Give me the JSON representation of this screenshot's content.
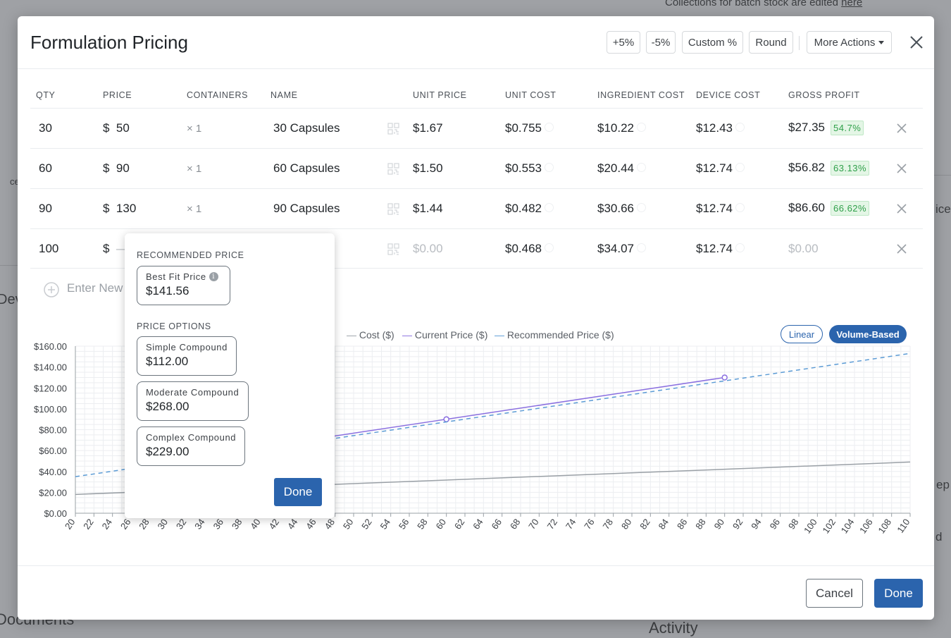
{
  "background": {
    "top_text": "Collections for batch stock are edited",
    "top_link": "here",
    "documents_heading": "Documents",
    "activity_heading": "Activity",
    "fragment_dev": "Dev",
    "fragment_ice": "ice",
    "fragment_ep": "ep",
    "fragment_d": "d",
    "fragment_ce": "ce"
  },
  "modal": {
    "title": "Formulation Pricing",
    "actions": [
      "+5%",
      "-5%",
      "Custom %",
      "Round",
      "More Actions"
    ],
    "close_icon": "close-icon"
  },
  "table": {
    "headers": [
      "QTY",
      "PRICE",
      "CONTAINERS",
      "NAME",
      "UNIT PRICE",
      "UNIT COST",
      "INGREDIENT COST",
      "DEVICE COST",
      "GROSS PROFIT"
    ],
    "currency_symbol": "$",
    "rows": [
      {
        "qty": "30",
        "price": "50",
        "containers": "× 1",
        "name": "30 Capsules",
        "unit_price": "$1.67",
        "unit_cost": "$0.755",
        "ingredient_cost": "$10.22",
        "device_cost": "$12.43",
        "gross_profit": "$27.35",
        "margin": "54.7%"
      },
      {
        "qty": "60",
        "price": "90",
        "containers": "× 1",
        "name": "60 Capsules",
        "unit_price": "$1.50",
        "unit_cost": "$0.553",
        "ingredient_cost": "$20.44",
        "device_cost": "$12.74",
        "gross_profit": "$56.82",
        "margin": "63.13%"
      },
      {
        "qty": "90",
        "price": "130",
        "containers": "× 1",
        "name": "90 Capsules",
        "unit_price": "$1.44",
        "unit_cost": "$0.482",
        "ingredient_cost": "$30.66",
        "device_cost": "$12.74",
        "gross_profit": "$86.60",
        "margin": "66.62%"
      },
      {
        "qty": "100",
        "price": "—",
        "containers": "",
        "name": "",
        "unit_price": "$0.00",
        "unit_cost": "$0.468",
        "ingredient_cost": "$34.07",
        "device_cost": "$12.74",
        "gross_profit": "$0.00",
        "margin": ""
      }
    ],
    "enter_new_placeholder": "Enter New"
  },
  "popover": {
    "recommended_label": "RECOMMENDED PRICE",
    "best_fit_label": "Best Fit Price",
    "best_fit_value": "$141.56",
    "options_label": "PRICE OPTIONS",
    "options": [
      {
        "name": "Simple Compound",
        "value": "$112.00"
      },
      {
        "name": "Moderate Compound",
        "value": "$268.00"
      },
      {
        "name": "Complex Compound",
        "value": "$229.00"
      }
    ],
    "done_label": "Done"
  },
  "chart_toggle": {
    "linear": "Linear",
    "volume": "Volume-Based",
    "active": "Volume-Based"
  },
  "chart_data": {
    "type": "line",
    "legend": [
      "Cost ($)",
      "Current Price ($)",
      "Recommended Price ($)"
    ],
    "x_ticks": [
      20,
      22,
      24,
      26,
      28,
      30,
      32,
      34,
      36,
      38,
      40,
      42,
      44,
      46,
      48,
      50,
      52,
      54,
      56,
      58,
      60,
      62,
      64,
      66,
      68,
      70,
      72,
      74,
      76,
      78,
      80,
      82,
      84,
      86,
      88,
      90,
      92,
      94,
      96,
      98,
      100,
      102,
      104,
      106,
      108,
      110
    ],
    "xlim": [
      20,
      110
    ],
    "ylim": [
      0,
      160
    ],
    "y_ticks": [
      "$0.00",
      "$20.00",
      "$40.00",
      "$60.00",
      "$80.00",
      "$100.00",
      "$120.00",
      "$140.00",
      "$160.00"
    ],
    "y_tick_values": [
      0,
      20,
      40,
      60,
      80,
      100,
      120,
      140,
      160
    ],
    "series": [
      {
        "name": "Cost ($)",
        "color": "#9aa0a6",
        "dash": false,
        "x": [
          20,
          110
        ],
        "y": [
          18,
          49
        ]
      },
      {
        "name": "Current Price ($)",
        "color": "#8a6fe0",
        "dash": false,
        "x": [
          30,
          60,
          90
        ],
        "y": [
          50,
          90,
          130
        ],
        "markers": [
          60,
          90
        ]
      },
      {
        "name": "Recommended Price ($)",
        "color": "#5b9bd5",
        "dash": true,
        "x": [
          20,
          110
        ],
        "y": [
          35,
          153
        ]
      }
    ]
  },
  "footer": {
    "cancel": "Cancel",
    "done": "Done"
  }
}
